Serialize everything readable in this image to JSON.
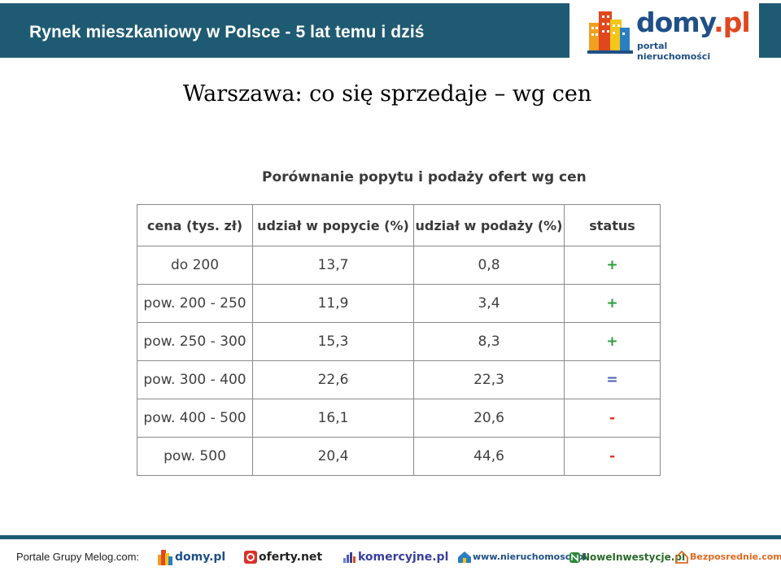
{
  "header": {
    "title": "Rynek mieszkaniowy w Polsce - 5 lat temu i dziś"
  },
  "brand": {
    "name_main": "domy",
    "name_tld": ".pl",
    "tagline": "portal nieruchomości"
  },
  "slide": {
    "title": "Warszawa: co się sprzedaje – wg cen"
  },
  "table": {
    "title": "Porównanie popytu i podaży ofert wg cen",
    "headers": [
      "cena (tys. zł)",
      "udział w popycie (%)",
      "udział w podaży (%)",
      "status"
    ],
    "rows": [
      {
        "cena": "do 200",
        "popyt": "13,7",
        "podaz": "0,8",
        "status": "+"
      },
      {
        "cena": "pow. 200 - 250",
        "popyt": "11,9",
        "podaz": "3,4",
        "status": "+"
      },
      {
        "cena": "pow. 250 - 300",
        "popyt": "15,3",
        "podaz": "8,3",
        "status": "+"
      },
      {
        "cena": "pow. 300 - 400",
        "popyt": "22,6",
        "podaz": "22,3",
        "status": "="
      },
      {
        "cena": "pow. 400 - 500",
        "popyt": "16,1",
        "podaz": "20,6",
        "status": "-"
      },
      {
        "cena": "pow. 500",
        "popyt": "20,4",
        "podaz": "44,6",
        "status": "-"
      }
    ],
    "status_colors": {
      "+": "#2e9c3c",
      "=": "#4a5fb0",
      "-": "#e0301e"
    }
  },
  "footer": {
    "label": "Portale Grupy Melog.com:",
    "portals": [
      "domy.pl",
      "oferty.net",
      "komercyjne.pl",
      "www.nieruchomosci.pl",
      "NoweInwestycje.pl",
      "Bezposrednie.com"
    ]
  },
  "colors": {
    "header_bg": "#1f5a73",
    "brand_blue": "#1f4f86",
    "brand_orange": "#e0471f"
  }
}
